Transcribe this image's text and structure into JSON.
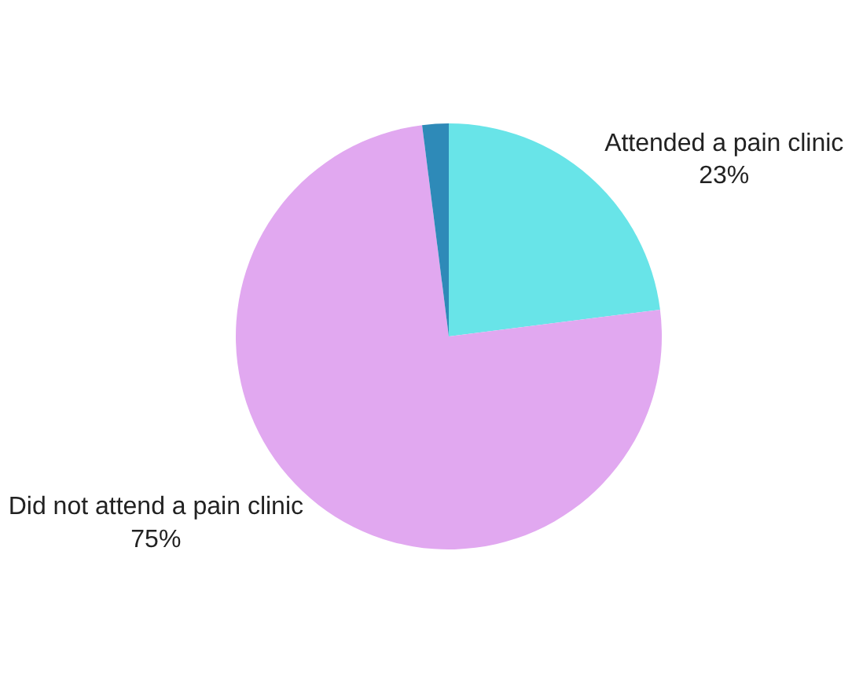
{
  "chart_data": {
    "type": "pie",
    "categories": [
      "Attended a pain clinic",
      "Did not attend a pain clinic",
      null
    ],
    "values": [
      23,
      75,
      2
    ],
    "value_labels": [
      "23%",
      "75%",
      null
    ],
    "colors": [
      "#68e4e8",
      "#e1a8f0",
      "#2e8ab8"
    ],
    "legend": false
  }
}
